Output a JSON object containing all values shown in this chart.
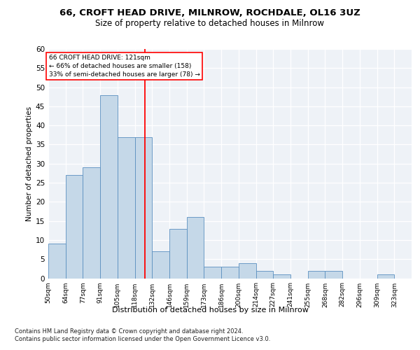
{
  "title_line1": "66, CROFT HEAD DRIVE, MILNROW, ROCHDALE, OL16 3UZ",
  "title_line2": "Size of property relative to detached houses in Milnrow",
  "xlabel": "Distribution of detached houses by size in Milnrow",
  "ylabel": "Number of detached properties",
  "categories": [
    "50sqm",
    "64sqm",
    "77sqm",
    "91sqm",
    "105sqm",
    "118sqm",
    "132sqm",
    "146sqm",
    "159sqm",
    "173sqm",
    "186sqm",
    "200sqm",
    "214sqm",
    "227sqm",
    "241sqm",
    "255sqm",
    "268sqm",
    "282sqm",
    "296sqm",
    "309sqm",
    "323sqm"
  ],
  "values": [
    9,
    27,
    29,
    48,
    37,
    37,
    7,
    13,
    16,
    3,
    3,
    4,
    2,
    1,
    0,
    2,
    2,
    0,
    0,
    1,
    0
  ],
  "bar_color": "#c5d8e8",
  "bar_edge_color": "#5a8fc0",
  "red_line_x": 121,
  "property_label": "66 CROFT HEAD DRIVE: 121sqm",
  "annotation_line2": "← 66% of detached houses are smaller (158)",
  "annotation_line3": "33% of semi-detached houses are larger (78) →",
  "ylim": [
    0,
    60
  ],
  "yticks": [
    0,
    5,
    10,
    15,
    20,
    25,
    30,
    35,
    40,
    45,
    50,
    55,
    60
  ],
  "footnote_line1": "Contains HM Land Registry data © Crown copyright and database right 2024.",
  "footnote_line2": "Contains public sector information licensed under the Open Government Licence v3.0.",
  "plot_bg_color": "#eef2f7"
}
